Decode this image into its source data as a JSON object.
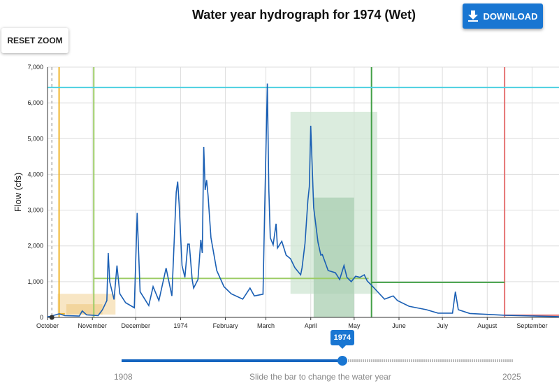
{
  "header": {
    "title": "Water year hydrograph for 1974 (Wet)",
    "download_label": "DOWNLOAD",
    "download_icon": "download-icon",
    "reset_label": "RESET ZOOM"
  },
  "slider": {
    "min": 1908,
    "max": 2025,
    "value": 1974,
    "value_label": "1974",
    "min_label": "1908",
    "max_label": "2025",
    "caption": "Slide the bar to change the water year",
    "accent": "#1976d2"
  },
  "chart_data": {
    "type": "line",
    "ylabel": "Flow (cfs)",
    "ylim": [
      0,
      7000
    ],
    "yticks": [
      0,
      1000,
      2000,
      3000,
      4000,
      5000,
      6000,
      7000
    ],
    "ytick_labels": [
      "0",
      "1,000",
      "2,000",
      "3,000",
      "4,000",
      "5,000",
      "6,000",
      "7,000"
    ],
    "xlim": [
      "1973-10-01",
      "1974-09-30"
    ],
    "xticks": [
      {
        "date": "1973-10-01",
        "label": "October"
      },
      {
        "date": "1973-11-01",
        "label": "November"
      },
      {
        "date": "1973-12-01",
        "label": "December"
      },
      {
        "date": "1974-01-01",
        "label": "1974"
      },
      {
        "date": "1974-02-01",
        "label": "February"
      },
      {
        "date": "1974-03-01",
        "label": "March"
      },
      {
        "date": "1974-04-01",
        "label": "April"
      },
      {
        "date": "1974-05-01",
        "label": "May"
      },
      {
        "date": "1974-06-01",
        "label": "June"
      },
      {
        "date": "1974-07-01",
        "label": "July"
      },
      {
        "date": "1974-08-01",
        "label": "August"
      },
      {
        "date": "1974-09-01",
        "label": "September"
      }
    ],
    "grid": true,
    "series_color": "#1a5fb4",
    "series": [
      {
        "points": [
          [
            "1973-10-01",
            20
          ],
          [
            "1973-10-03",
            30
          ],
          [
            "1973-10-09",
            100
          ],
          [
            "1973-10-13",
            50
          ],
          [
            "1973-10-23",
            40
          ],
          [
            "1973-10-25",
            180
          ],
          [
            "1973-10-28",
            70
          ],
          [
            "1973-11-05",
            50
          ],
          [
            "1973-11-08",
            215
          ],
          [
            "1973-11-11",
            470
          ],
          [
            "1973-11-12",
            1800
          ],
          [
            "1973-11-13",
            1000
          ],
          [
            "1973-11-16",
            500
          ],
          [
            "1973-11-18",
            1450
          ],
          [
            "1973-11-20",
            660
          ],
          [
            "1973-11-24",
            410
          ],
          [
            "1973-11-30",
            270
          ],
          [
            "1973-12-02",
            2920
          ],
          [
            "1973-12-04",
            720
          ],
          [
            "1973-12-10",
            330
          ],
          [
            "1973-12-13",
            860
          ],
          [
            "1973-12-17",
            470
          ],
          [
            "1973-12-22",
            1380
          ],
          [
            "1973-12-26",
            600
          ],
          [
            "1973-12-29",
            3500
          ],
          [
            "1973-12-30",
            3800
          ],
          [
            "1973-12-31",
            3150
          ],
          [
            "1974-01-02",
            1450
          ],
          [
            "1974-01-04",
            1120
          ],
          [
            "1974-01-06",
            2050
          ],
          [
            "1974-01-07",
            2050
          ],
          [
            "1974-01-09",
            1060
          ],
          [
            "1974-01-10",
            820
          ],
          [
            "1974-01-13",
            1060
          ],
          [
            "1974-01-15",
            2170
          ],
          [
            "1974-01-16",
            1800
          ],
          [
            "1974-01-17",
            4770
          ],
          [
            "1974-01-18",
            3560
          ],
          [
            "1974-01-19",
            3840
          ],
          [
            "1974-01-20",
            3400
          ],
          [
            "1974-01-22",
            2230
          ],
          [
            "1974-01-26",
            1310
          ],
          [
            "1974-01-31",
            860
          ],
          [
            "1974-02-05",
            660
          ],
          [
            "1974-02-13",
            510
          ],
          [
            "1974-02-18",
            820
          ],
          [
            "1974-02-21",
            600
          ],
          [
            "1974-02-27",
            650
          ],
          [
            "1974-02-28",
            2750
          ],
          [
            "1974-03-02",
            6540
          ],
          [
            "1974-03-03",
            3600
          ],
          [
            "1974-03-04",
            2230
          ],
          [
            "1974-03-06",
            2030
          ],
          [
            "1974-03-08",
            2620
          ],
          [
            "1974-03-09",
            1940
          ],
          [
            "1974-03-12",
            2130
          ],
          [
            "1974-03-15",
            1740
          ],
          [
            "1974-03-18",
            1640
          ],
          [
            "1974-03-21",
            1390
          ],
          [
            "1974-03-25",
            1190
          ],
          [
            "1974-03-26",
            1390
          ],
          [
            "1974-03-28",
            2070
          ],
          [
            "1974-03-30",
            3270
          ],
          [
            "1974-03-31",
            3660
          ],
          [
            "1974-04-01",
            5360
          ],
          [
            "1974-04-03",
            3070
          ],
          [
            "1974-04-06",
            2100
          ],
          [
            "1974-04-08",
            1740
          ],
          [
            "1974-04-09",
            1760
          ],
          [
            "1974-04-13",
            1310
          ],
          [
            "1974-04-18",
            1250
          ],
          [
            "1974-04-21",
            1060
          ],
          [
            "1974-04-24",
            1450
          ],
          [
            "1974-04-26",
            1120
          ],
          [
            "1974-04-29",
            1000
          ],
          [
            "1974-05-02",
            1150
          ],
          [
            "1974-05-05",
            1120
          ],
          [
            "1974-05-08",
            1190
          ],
          [
            "1974-05-10",
            1020
          ],
          [
            "1974-05-13",
            900
          ],
          [
            "1974-05-22",
            510
          ],
          [
            "1974-05-28",
            600
          ],
          [
            "1974-05-31",
            470
          ],
          [
            "1974-06-08",
            310
          ],
          [
            "1974-06-20",
            215
          ],
          [
            "1974-06-28",
            120
          ],
          [
            "1974-07-08",
            120
          ],
          [
            "1974-07-10",
            720
          ],
          [
            "1974-07-12",
            215
          ],
          [
            "1974-07-20",
            110
          ],
          [
            "1974-08-13",
            60
          ],
          [
            "1974-09-20",
            20
          ],
          [
            "1974-09-30",
            20
          ]
        ]
      }
    ],
    "hlines": [
      {
        "flow": 6430,
        "from": "1973-10-01",
        "to": "1974-09-30",
        "color": "#4dd0e1"
      },
      {
        "flow": 1090,
        "from": "1973-11-02",
        "to": "1974-05-11",
        "color": "#9ccc65"
      },
      {
        "flow": 980,
        "from": "1974-05-13",
        "to": "1974-08-13",
        "color": "#43a047"
      },
      {
        "flow": 60,
        "from": "1974-08-13",
        "to": "1974-09-30",
        "color": "#e57373"
      },
      {
        "flow": 100,
        "from": "1973-10-09",
        "to": "1973-10-13",
        "color": "#f0b429"
      }
    ],
    "vlines": [
      {
        "date": "1973-10-04",
        "color": "#999",
        "dashed": true
      },
      {
        "date": "1973-10-09",
        "color": "#f0b429"
      },
      {
        "date": "1973-11-02",
        "color": "#9ccc65"
      },
      {
        "date": "1974-05-13",
        "color": "#43a047"
      },
      {
        "date": "1974-08-13",
        "color": "#e57373"
      }
    ],
    "boxes": [
      {
        "from": "1973-10-08",
        "to": "1973-11-17",
        "flow": [
          80,
          660
        ],
        "color": "#f5deb0"
      },
      {
        "from": "1973-10-14",
        "to": "1973-11-08",
        "flow": [
          80,
          370
        ],
        "color": "#f0cf90"
      },
      {
        "from": "1974-03-18",
        "to": "1974-05-17",
        "flow": [
          660,
          5750
        ],
        "color": "#cfe5d3"
      },
      {
        "from": "1974-04-03",
        "to": "1974-05-01",
        "flow": [
          0,
          3350
        ],
        "color": "#a9cfb2"
      }
    ],
    "marker": {
      "date": "1973-10-04",
      "flow": 0,
      "color": "#333"
    }
  }
}
